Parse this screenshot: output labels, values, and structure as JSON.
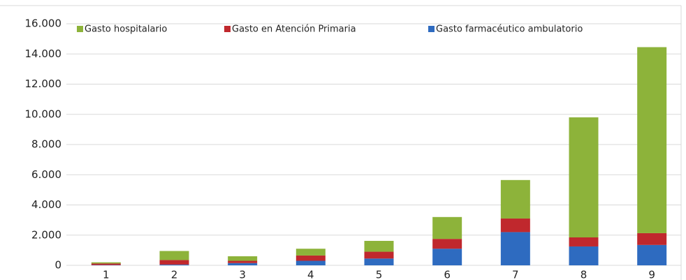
{
  "chart_data": {
    "type": "stacked-bar",
    "categories": [
      "1",
      "2",
      "3",
      "4",
      "5",
      "6",
      "7",
      "8",
      "9"
    ],
    "series": [
      {
        "name": "Gasto farmacéutico ambulatorio",
        "color": "#2e6bc0",
        "values": [
          20,
          50,
          150,
          300,
          450,
          1100,
          2200,
          1250,
          1350
        ]
      },
      {
        "name": "Gasto en Atención Primaria",
        "color": "#c0282d",
        "values": [
          100,
          300,
          150,
          350,
          450,
          650,
          900,
          600,
          780
        ]
      },
      {
        "name": "Gasto hospitalario",
        "color": "#8db33a",
        "values": [
          80,
          600,
          300,
          450,
          720,
          1450,
          2550,
          7950,
          12320
        ]
      }
    ],
    "ylim": [
      0,
      16000
    ],
    "yticks": [
      0,
      {
        "value": 2000,
        "label": "2.000"
      },
      {
        "value": 4000,
        "label": "4.000"
      },
      {
        "value": 6000,
        "label": "6.000"
      },
      {
        "value": 8000,
        "label": "8.000"
      },
      {
        "value": 10000,
        "label": "10.000"
      },
      {
        "value": 12000,
        "label": "12.000"
      },
      {
        "value": 14000,
        "label": "14.000"
      },
      {
        "value": 16000,
        "label": "16.000"
      }
    ],
    "grid": true
  }
}
